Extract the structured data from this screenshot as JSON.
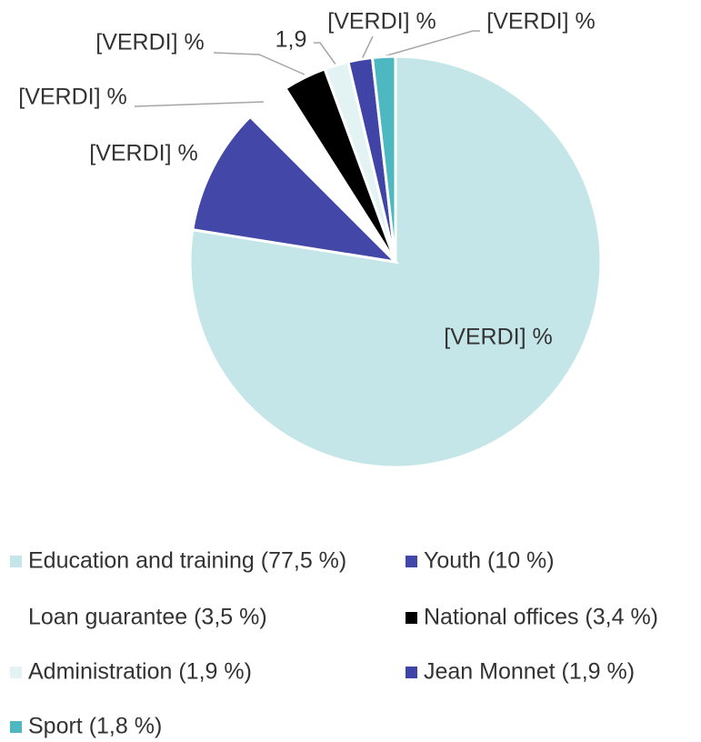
{
  "chart_data": {
    "type": "pie",
    "categories": [
      "Education and training (77,5 %)",
      "Youth (10 %)",
      "Loan guarantee (3,5 %)",
      "National offices (3,4 %)",
      "Administration (1,9 %)",
      "Jean Monnet (1,9 %)",
      "Sport (1,8 %)"
    ],
    "values": [
      77.5,
      10,
      3.5,
      3.4,
      1.9,
      1.9,
      1.8
    ],
    "value_labels": [
      "[VERDI] %",
      "[VERDI] %",
      "[VERDI] %",
      "[VERDI] %",
      "1,9",
      "[VERDI] %",
      "[VERDI] %"
    ],
    "colors": [
      "#c5e6e8",
      "#4348a8",
      "#ffffff",
      "#000000",
      "#e3f3f4",
      "#3f44a6",
      "#4db8c0"
    ],
    "legend": "bottom"
  }
}
